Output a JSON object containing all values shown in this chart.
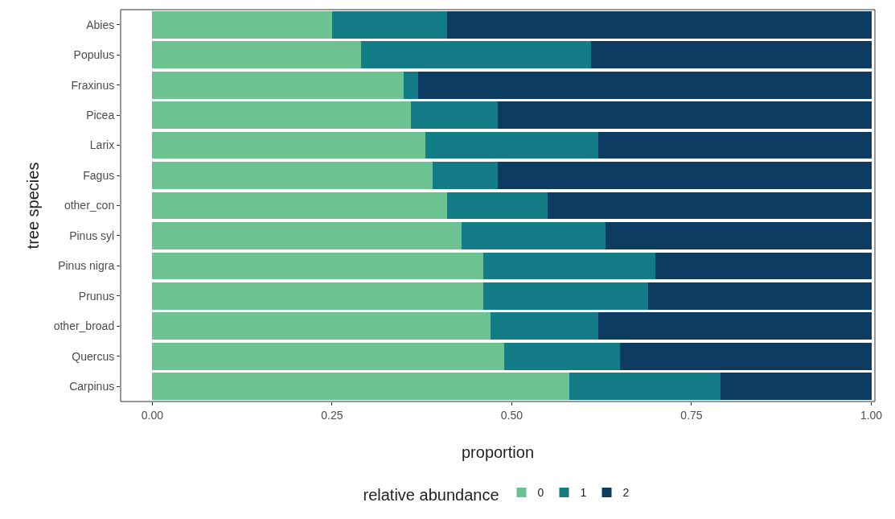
{
  "chart_data": {
    "type": "bar",
    "orientation": "horizontal",
    "stacked": true,
    "xlabel": "proportion",
    "ylabel": "tree species",
    "legend_title": "relative abundance",
    "legend": "bottom",
    "grid": false,
    "categories": [
      "Abies",
      "Populus",
      "Fraxinus",
      "Picea",
      "Larix",
      "Fagus",
      "other_con",
      "Pinus syl",
      "Pinus nigra",
      "Prunus",
      "other_broad",
      "Quercus",
      "Carpinus"
    ],
    "xlim": [
      -0.044,
      1.005
    ],
    "xticks": [
      {
        "value": 0,
        "label": "0.00"
      },
      {
        "value": 0.25,
        "label": "0.25"
      },
      {
        "value": 0.5,
        "label": "0.50"
      },
      {
        "value": 0.75,
        "label": "0.75"
      },
      {
        "value": 1,
        "label": "1.00"
      }
    ],
    "series": [
      {
        "name": "0",
        "color": "#6cc291",
        "values": [
          0.25,
          0.29,
          0.35,
          0.36,
          0.38,
          0.39,
          0.41,
          0.43,
          0.46,
          0.46,
          0.47,
          0.49,
          0.58
        ]
      },
      {
        "name": "1",
        "color": "#137c87",
        "values": [
          0.16,
          0.32,
          0.02,
          0.12,
          0.24,
          0.09,
          0.14,
          0.2,
          0.24,
          0.23,
          0.15,
          0.16,
          0.21
        ]
      },
      {
        "name": "2",
        "color": "#0c3c62",
        "values": [
          0.59,
          0.39,
          0.63,
          0.52,
          0.38,
          0.52,
          0.45,
          0.37,
          0.3,
          0.31,
          0.38,
          0.35,
          0.21
        ]
      }
    ]
  }
}
